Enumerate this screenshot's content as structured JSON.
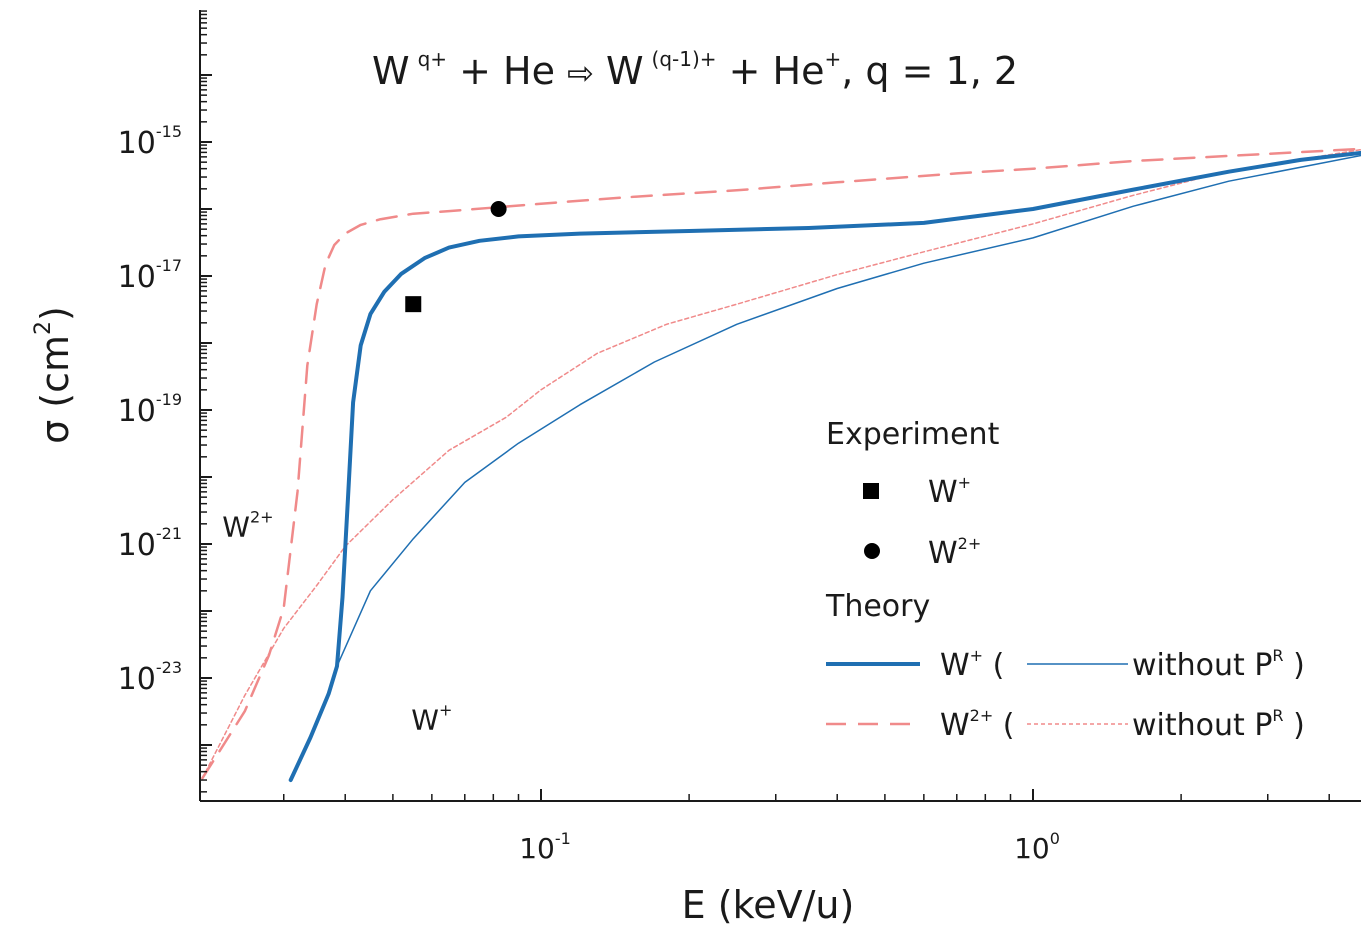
{
  "chart_data": {
    "type": "line",
    "title": {
      "main": "W",
      "sup1": "q+",
      "part2": " + He  ",
      "arrow": "⇨",
      "part3": " W",
      "sup2": "(q-1)+",
      "part4": " + He",
      "sup3": "+",
      "part5": ",   q = 1, 2"
    },
    "xlabel": "E (keV/u)",
    "ylabel": {
      "base": "σ (cm",
      "sup": "2",
      "close": ")"
    },
    "x_scale": "log",
    "y_scale": "log",
    "xlim": [
      0.0205,
      4.8
    ],
    "ylim": [
      1e-25,
      1e-13
    ],
    "x_ticks": [
      {
        "value": 0.1,
        "base": "10",
        "exp": "-1"
      },
      {
        "value": 1,
        "base": "10",
        "exp": "0"
      }
    ],
    "y_ticks": [
      {
        "value": 1e-15,
        "base": "10",
        "exp": "-15"
      },
      {
        "value": 1e-17,
        "base": "10",
        "exp": "-17"
      },
      {
        "value": 1e-19,
        "base": "10",
        "exp": "-19"
      },
      {
        "value": 1e-21,
        "base": "10",
        "exp": "-21"
      },
      {
        "value": 1e-23,
        "base": "10",
        "exp": "-23"
      }
    ],
    "colors": {
      "w1": "#1f6fb2",
      "w2": "#f08a8a",
      "exp": "#000000"
    },
    "series": [
      {
        "id": "w1-theory",
        "style": "thick-solid",
        "x": [
          0.031,
          0.034,
          0.037,
          0.0385,
          0.0395,
          0.0405,
          0.0415,
          0.043,
          0.045,
          0.048,
          0.052,
          0.058,
          0.065,
          0.075,
          0.09,
          0.12,
          0.2,
          0.35,
          0.6,
          1.0,
          1.6,
          2.5,
          3.5,
          4.8
        ],
        "y": [
          3e-25,
          1.3e-24,
          5.8e-24,
          1.5e-23,
          1.6e-22,
          4.6e-21,
          1.3e-19,
          9.2e-19,
          2.7e-18,
          5.8e-18,
          1.08e-17,
          1.85e-17,
          2.65e-17,
          3.35e-17,
          3.9e-17,
          4.3e-17,
          4.7e-17,
          5.2e-17,
          6.2e-17,
          1e-16,
          1.95e-16,
          3.6e-16,
          5.4e-16,
          7.1e-16
        ]
      },
      {
        "id": "w1-without-pr",
        "style": "thin-solid",
        "x": [
          0.0385,
          0.045,
          0.055,
          0.07,
          0.09,
          0.12,
          0.17,
          0.25,
          0.4,
          0.6,
          1.0,
          1.6,
          2.5,
          4.8
        ],
        "y": [
          1.5e-23,
          2e-22,
          1.2e-21,
          8.3e-21,
          3.2e-20,
          1.2e-19,
          5.2e-19,
          1.9e-18,
          6.5e-18,
          1.55e-17,
          3.7e-17,
          1.1e-16,
          2.6e-16,
          6.6e-16
        ]
      },
      {
        "id": "w2-theory",
        "style": "dashed",
        "x": [
          0.0205,
          0.025,
          0.028,
          0.03,
          0.032,
          0.0335,
          0.035,
          0.0365,
          0.038,
          0.04,
          0.043,
          0.047,
          0.055,
          0.065,
          0.08,
          0.1,
          0.15,
          0.25,
          0.4,
          0.7,
          1.0,
          1.6,
          2.5,
          4.8
        ],
        "y": [
          3.2e-25,
          3.2e-24,
          2.2e-23,
          1.1e-22,
          6e-21,
          4.6e-19,
          3.8e-18,
          1.5e-17,
          2.9e-17,
          4.3e-17,
          5.8e-17,
          7e-17,
          8.5e-17,
          9.3e-17,
          1.05e-16,
          1.2e-16,
          1.5e-16,
          1.9e-16,
          2.5e-16,
          3.4e-16,
          4e-16,
          5.2e-16,
          6.2e-16,
          8e-16
        ]
      },
      {
        "id": "w2-without-pr",
        "style": "dotted",
        "x": [
          0.0205,
          0.025,
          0.03,
          0.035,
          0.04,
          0.05,
          0.065,
          0.085,
          0.1,
          0.13,
          0.18,
          0.25,
          0.4,
          0.6,
          1.0,
          1.6,
          2.5,
          4.8
        ],
        "y": [
          3.2e-25,
          5.5e-24,
          5.5e-23,
          2.4e-22,
          9.2e-22,
          4.6e-21,
          2.5e-20,
          7.8e-20,
          2e-19,
          7e-19,
          1.9e-18,
          3.8e-18,
          1.05e-17,
          2.3e-17,
          6e-17,
          1.6e-16,
          3.7e-16,
          8e-16
        ]
      }
    ],
    "experiment": [
      {
        "id": "w1",
        "marker": "square",
        "x": 0.055,
        "y": 3.8e-18
      },
      {
        "id": "w2",
        "marker": "circle",
        "x": 0.082,
        "y": 1e-16
      }
    ],
    "curve_labels": [
      {
        "id": "w2",
        "text": "W",
        "sup": "2+",
        "x": 0.0225,
        "y": 1.3e-21
      },
      {
        "id": "w1",
        "text": "W",
        "sup": "+",
        "x": 0.0545,
        "y": 1.7e-24
      }
    ],
    "legend": {
      "placement": "bottom-right",
      "experiment_title": "Experiment",
      "experiment_w1": {
        "text": "W",
        "sup": "+"
      },
      "experiment_w2": {
        "text": "W",
        "sup": "2+"
      },
      "theory_title": "Theory",
      "theory_w1": {
        "text": "W",
        "sup": "+",
        "open": " (",
        "without": "without P",
        "without_sup": "R",
        "close": " )"
      },
      "theory_w2": {
        "text": "W",
        "sup": "2+",
        "open": " (",
        "without": "without P",
        "without_sup": "R",
        "close": " )"
      }
    }
  }
}
